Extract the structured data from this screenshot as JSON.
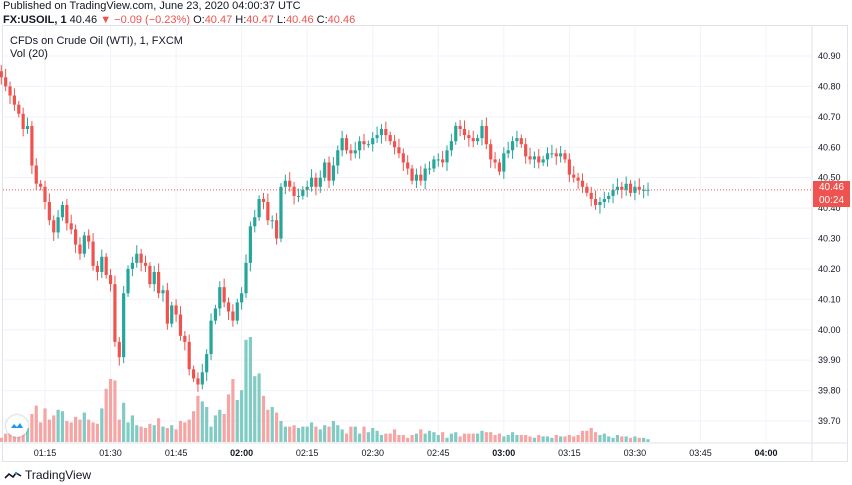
{
  "header": {
    "published": "Published on TradingView.com, June 23, 2020 04:00:37 UTC"
  },
  "quote": {
    "symbol": "FX:USOIL, 1",
    "last": "40.46",
    "change": "▼ −0.09 (−0.23%)",
    "o_label": "O:",
    "o_value": "40.47",
    "h_label": "H:",
    "h_value": "40.47",
    "l_label": "L:",
    "l_value": "40.46",
    "c_label": "C:",
    "c_value": "40.46"
  },
  "legend": {
    "title": "CFDs on Crude Oil (WTI), 1, FXCM",
    "volume": "Vol (20)"
  },
  "price_label": "40.46",
  "countdown_label": "00:24",
  "footer": {
    "brand": "TradingView"
  },
  "colors": {
    "up": "#26a69a",
    "down": "#ef5350",
    "up_vol": "#80cbc4",
    "down_vol": "#f5a5a3",
    "last_line": "#ef5350"
  },
  "chart_data": {
    "type": "candlestick",
    "title": "CFDs on Crude Oil (WTI), 1, FXCM",
    "ylim": [
      39.62,
      40.97
    ],
    "y_ticks": [
      "40.90",
      "40.80",
      "40.70",
      "40.60",
      "40.50",
      "40.40",
      "40.30",
      "40.20",
      "40.10",
      "40.00",
      "39.90",
      "39.80",
      "39.70"
    ],
    "x_ticks": [
      "01:15",
      "01:30",
      "01:45",
      "02:00",
      "02:15",
      "02:30",
      "02:45",
      "03:00",
      "03:15",
      "03:30",
      "03:45",
      "04:00"
    ],
    "x_tick_minutes": [
      75,
      90,
      105,
      120,
      135,
      150,
      165,
      180,
      195,
      210,
      225,
      240
    ],
    "start_minute": 64,
    "last_price": 40.46,
    "bold_ticks": [
      "02:00",
      "03:00",
      "04:00"
    ],
    "closes": [
      40.85,
      40.83,
      40.8,
      40.77,
      40.74,
      40.71,
      40.66,
      40.67,
      40.54,
      40.48,
      40.47,
      40.42,
      40.36,
      40.32,
      40.37,
      40.41,
      40.35,
      40.33,
      40.28,
      40.25,
      40.31,
      40.29,
      40.21,
      40.19,
      40.24,
      40.18,
      40.15,
      39.96,
      39.91,
      40.12,
      40.2,
      40.22,
      40.25,
      40.22,
      40.21,
      40.15,
      40.19,
      40.12,
      40.13,
      40.02,
      40.08,
      40.05,
      39.98,
      39.96,
      39.87,
      39.84,
      39.82,
      39.86,
      39.92,
      40.03,
      40.07,
      40.14,
      40.09,
      40.06,
      40.03,
      40.09,
      40.12,
      40.22,
      40.34,
      40.37,
      40.43,
      40.42,
      40.36,
      40.36,
      40.3,
      40.47,
      40.49,
      40.47,
      40.44,
      40.44,
      40.46,
      40.47,
      40.5,
      40.47,
      40.5,
      40.55,
      40.49,
      40.54,
      40.59,
      40.63,
      40.59,
      40.58,
      40.59,
      40.62,
      40.61,
      40.61,
      40.63,
      40.64,
      40.66,
      40.64,
      40.62,
      40.6,
      40.58,
      40.55,
      40.53,
      40.49,
      40.51,
      40.49,
      40.53,
      40.53,
      40.56,
      40.56,
      40.55,
      40.59,
      40.62,
      40.67,
      40.66,
      40.64,
      40.63,
      40.62,
      40.63,
      40.67,
      40.61,
      40.56,
      40.55,
      40.52,
      40.58,
      40.59,
      40.62,
      40.63,
      40.61,
      40.57,
      40.56,
      40.57,
      40.55,
      40.56,
      40.58,
      40.58,
      40.57,
      40.58,
      40.56,
      40.51,
      40.5,
      40.49,
      40.47,
      40.45,
      40.43,
      40.41,
      40.42,
      40.43,
      40.44,
      40.46,
      40.47,
      40.46,
      40.48,
      40.45,
      40.47,
      40.46,
      40.46,
      40.46
    ],
    "volumes": [
      6,
      3,
      6,
      12,
      10,
      12,
      7,
      10,
      20,
      26,
      14,
      24,
      16,
      19,
      23,
      22,
      15,
      14,
      18,
      16,
      21,
      16,
      14,
      13,
      24,
      38,
      45,
      44,
      16,
      28,
      14,
      19,
      12,
      11,
      10,
      13,
      12,
      17,
      11,
      10,
      12,
      9,
      15,
      14,
      16,
      22,
      33,
      29,
      25,
      11,
      19,
      23,
      20,
      34,
      45,
      30,
      37,
      73,
      75,
      47,
      49,
      33,
      23,
      25,
      21,
      15,
      11,
      11,
      12,
      10,
      11,
      11,
      14,
      11,
      9,
      12,
      11,
      15,
      12,
      9,
      6,
      11,
      11,
      6,
      11,
      7,
      10,
      8,
      5,
      6,
      6,
      9,
      5,
      5,
      3,
      5,
      6,
      9,
      6,
      8,
      7,
      5,
      7,
      3,
      6,
      7,
      4,
      6,
      6,
      6,
      6,
      8,
      7,
      7,
      5,
      6,
      4,
      5,
      7,
      5,
      5,
      5,
      4,
      3,
      5,
      4,
      4,
      3,
      5,
      4,
      4,
      5,
      4,
      5,
      8,
      8,
      10,
      7,
      5,
      6,
      4,
      3,
      5,
      4,
      4,
      3,
      4,
      3,
      3,
      2
    ]
  }
}
